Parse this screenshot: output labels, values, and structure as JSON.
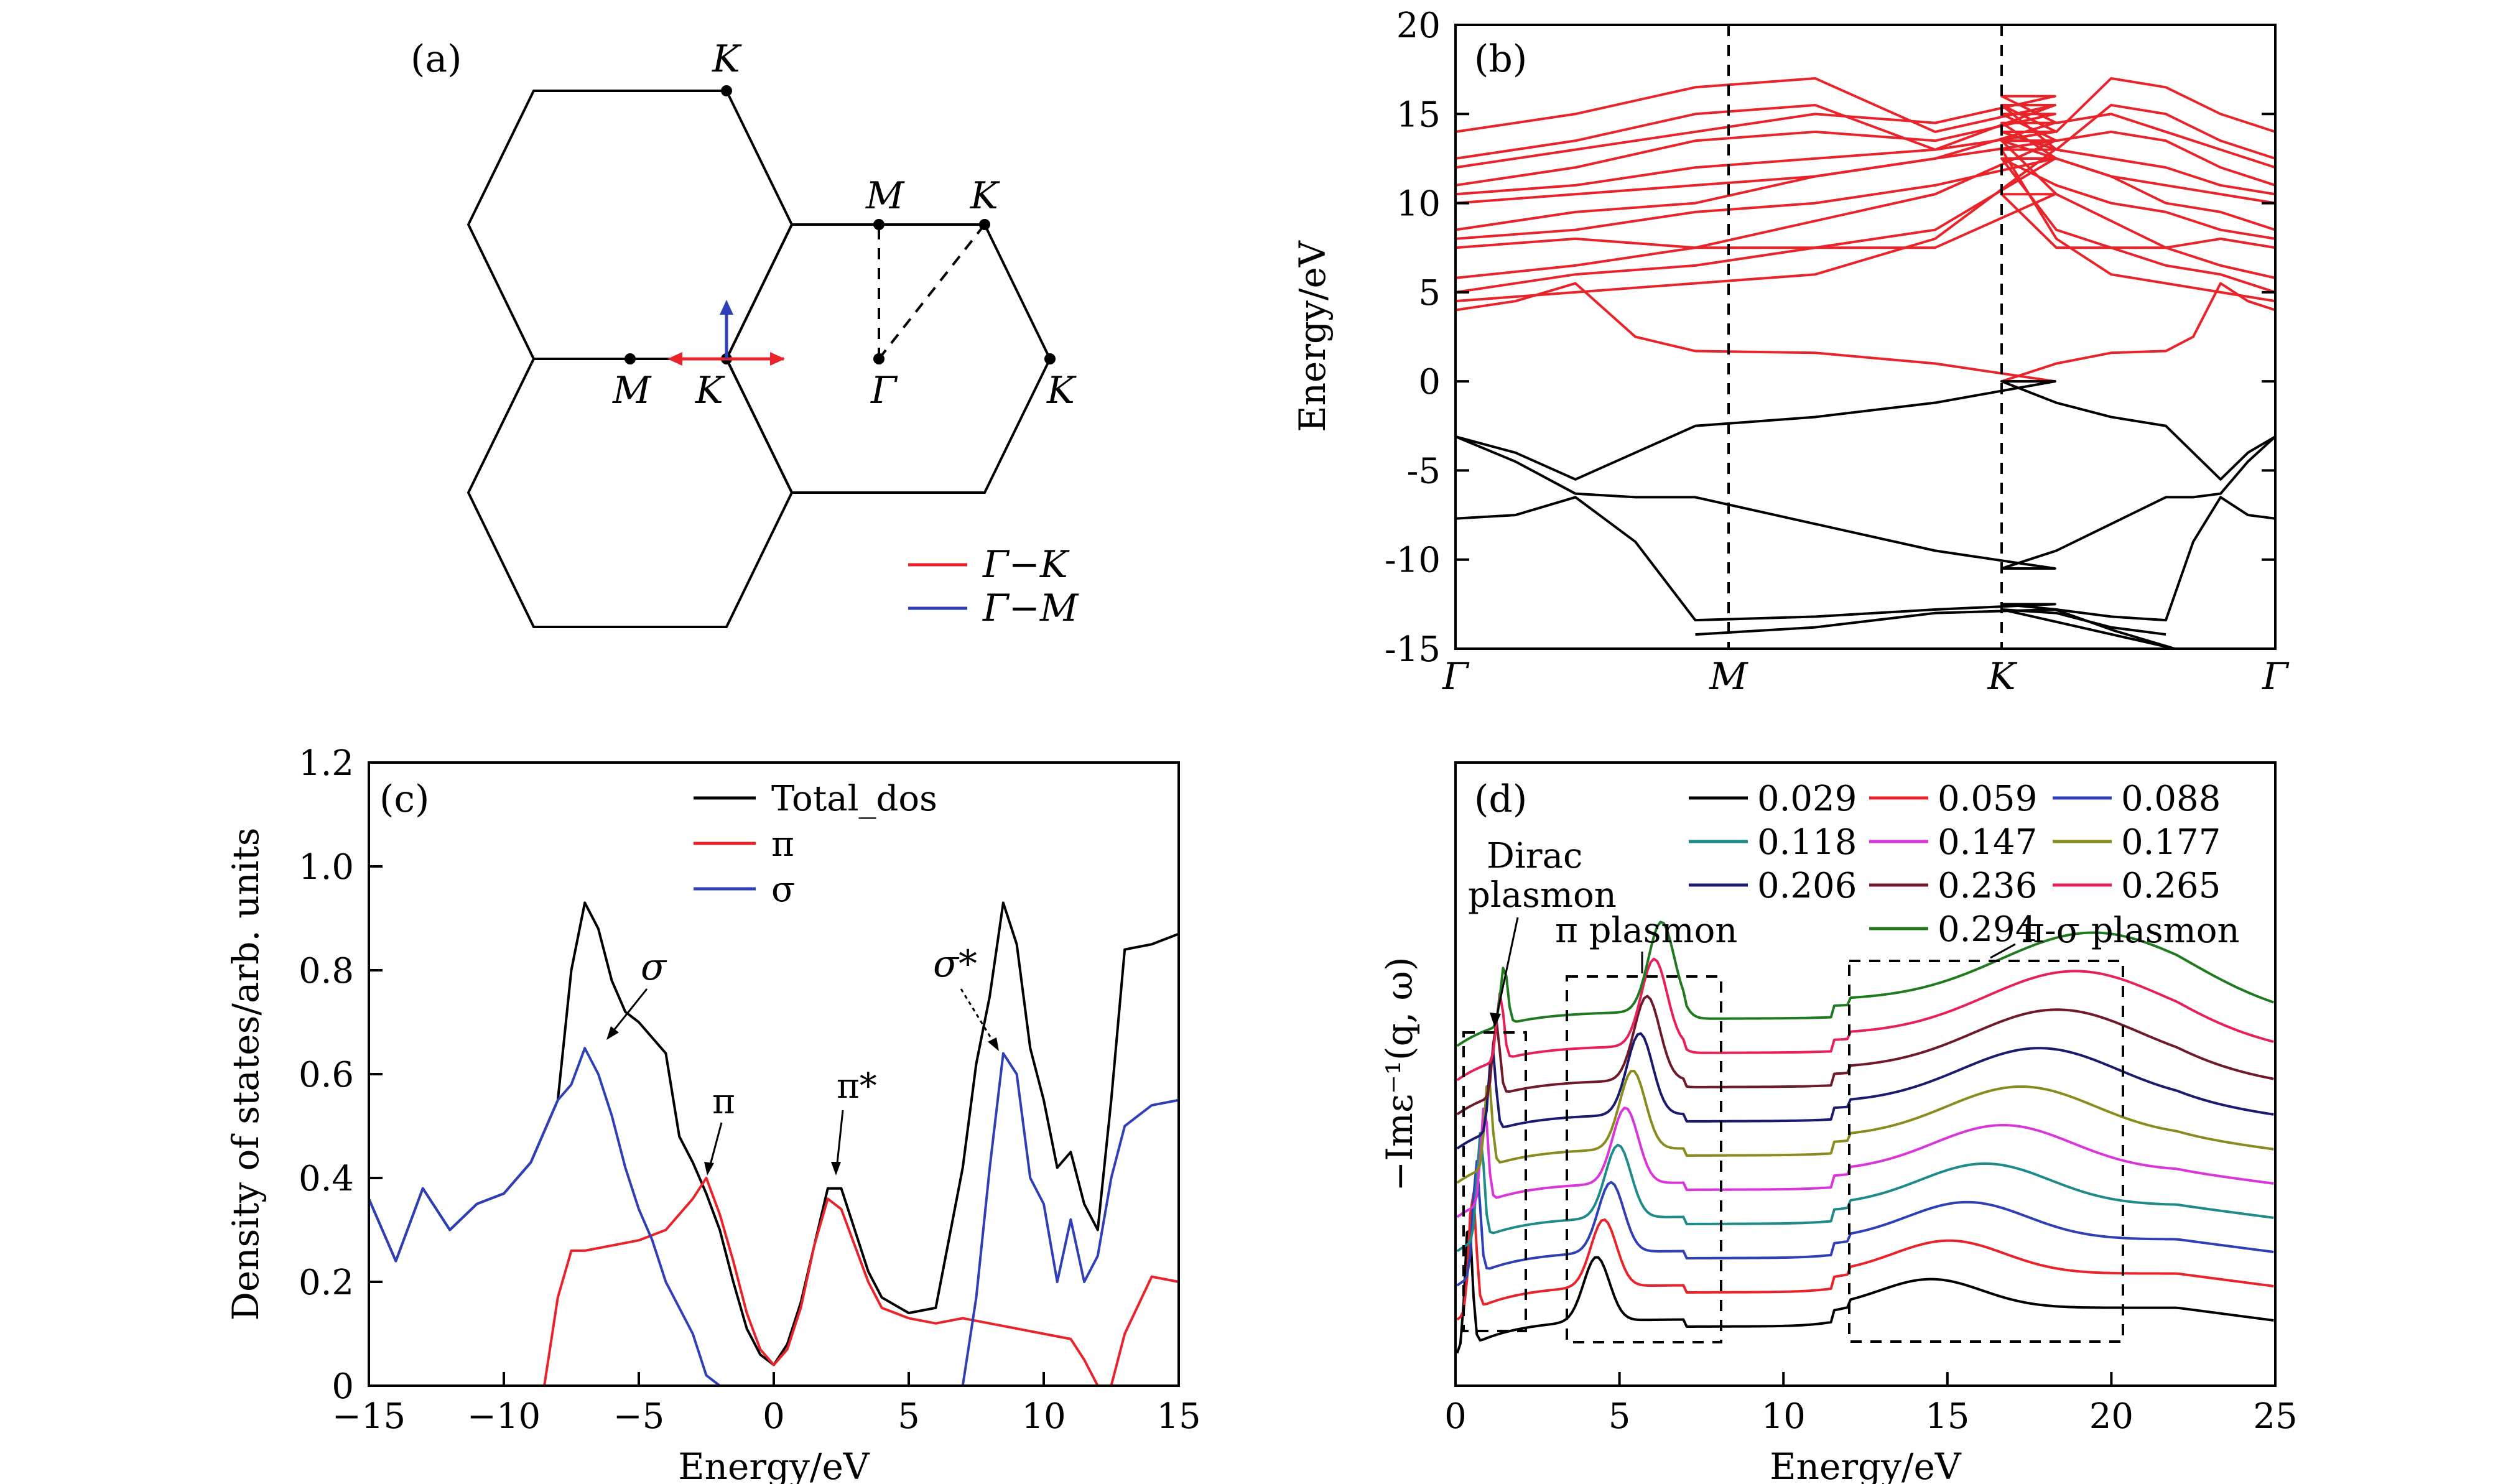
{
  "panels": {
    "a": {
      "label": "(a)",
      "points": {
        "K_top": "K",
        "M_right": "M",
        "K_right_top": "K",
        "M_left": "M",
        "K_center": "K",
        "Gamma": "Γ",
        "K_right": "K"
      },
      "legend": [
        {
          "label": "Γ−K",
          "color": "#e8232a"
        },
        {
          "label": "Γ−M",
          "color": "#2f3fb5"
        }
      ]
    },
    "b": {
      "label": "(b)",
      "ylabel": "Energy/eV",
      "kpoints": [
        "Γ",
        "M",
        "K",
        "Γ"
      ]
    },
    "c": {
      "label": "(c)",
      "xlabel": "Energy/eV",
      "ylabel": "Density of states/arb. units",
      "annotations": [
        "σ",
        "π",
        "π*",
        "σ*"
      ]
    },
    "d": {
      "label": "(d)",
      "xlabel": "Energy/eV",
      "ylabel": "−Imε⁻¹(q, ω)",
      "annotations": [
        "Dirac",
        "plasmon",
        "π plasmon",
        "π-σ plasmon"
      ]
    }
  },
  "chart_data": [
    {
      "id": "b",
      "type": "line",
      "title": "",
      "xlabel": "",
      "ylabel": "Energy/eV",
      "x_ticks": [
        "Γ",
        "M",
        "K",
        "Γ"
      ],
      "ylim": [
        -15,
        20
      ],
      "yticks": [
        -15,
        -10,
        -5,
        0,
        5,
        10,
        15,
        20
      ],
      "colors": {
        "valence": "#000000",
        "conduction": "#e8232a"
      },
      "series": [
        {
          "band": "conduction",
          "points": [
            [
              0,
              4.0
            ],
            [
              0.5,
              4.5
            ],
            [
              1,
              5.5
            ],
            [
              1.5,
              2.5
            ],
            [
              2,
              1.7
            ],
            [
              3,
              1.6
            ],
            [
              4,
              1.0
            ],
            [
              5,
              0
            ]
          ]
        },
        {
          "band": "conduction",
          "points": [
            [
              0,
              4.5
            ],
            [
              1,
              5.0
            ],
            [
              2,
              5.5
            ],
            [
              3,
              6.0
            ],
            [
              4,
              8.0
            ],
            [
              5,
              13.0
            ]
          ]
        },
        {
          "band": "conduction",
          "points": [
            [
              0,
              5.0
            ],
            [
              1,
              6.0
            ],
            [
              2,
              6.5
            ],
            [
              3,
              7.5
            ],
            [
              4,
              8.5
            ],
            [
              5,
              12.5
            ]
          ]
        },
        {
          "band": "conduction",
          "points": [
            [
              0,
              5.8
            ],
            [
              1,
              6.5
            ],
            [
              2,
              7.5
            ],
            [
              3,
              9.0
            ],
            [
              4,
              10.5
            ],
            [
              5,
              13.5
            ]
          ]
        },
        {
          "band": "conduction",
          "points": [
            [
              0,
              7.5
            ],
            [
              1,
              8.0
            ],
            [
              2,
              7.5
            ],
            [
              3,
              7.5
            ],
            [
              4,
              7.5
            ],
            [
              5,
              10.5
            ]
          ]
        },
        {
          "band": "conduction",
          "points": [
            [
              0,
              8.0
            ],
            [
              1,
              8.5
            ],
            [
              2,
              9.5
            ],
            [
              3,
              10.0
            ],
            [
              4,
              11.0
            ],
            [
              5,
              12.5
            ]
          ]
        },
        {
          "band": "conduction",
          "points": [
            [
              0,
              8.5
            ],
            [
              1,
              9.5
            ],
            [
              2,
              10.0
            ],
            [
              3,
              11.5
            ],
            [
              4,
              12.5
            ],
            [
              5,
              14.5
            ]
          ]
        },
        {
          "band": "conduction",
          "points": [
            [
              0,
              10.5
            ],
            [
              1,
              11.0
            ],
            [
              2,
              12.0
            ],
            [
              3,
              12.5
            ],
            [
              4,
              13.0
            ],
            [
              5,
              14.0
            ]
          ]
        },
        {
          "band": "conduction",
          "points": [
            [
              0,
              11.0
            ],
            [
              1,
              12.0
            ],
            [
              2,
              13.5
            ],
            [
              3,
              14.0
            ],
            [
              4,
              13.5
            ],
            [
              5,
              15.0
            ]
          ]
        },
        {
          "band": "conduction",
          "points": [
            [
              0,
              12.5
            ],
            [
              1,
              13.5
            ],
            [
              2,
              15.0
            ],
            [
              3,
              15.5
            ],
            [
              4,
              13.0
            ],
            [
              5,
              15.5
            ]
          ]
        },
        {
          "band": "conduction",
          "points": [
            [
              0,
              14.0
            ],
            [
              1,
              15.0
            ],
            [
              2,
              16.5
            ],
            [
              3,
              17.0
            ],
            [
              4,
              14.0
            ],
            [
              5,
              15.5
            ]
          ]
        },
        {
          "band": "conduction",
          "points": [
            [
              0,
              12.0
            ],
            [
              1,
              13.0
            ],
            [
              2,
              14.0
            ],
            [
              3,
              15.0
            ],
            [
              4,
              14.5
            ],
            [
              5,
              16.0
            ]
          ]
        },
        {
          "band": "conduction",
          "points": [
            [
              0,
              10.0
            ],
            [
              1,
              10.5
            ],
            [
              2,
              11.0
            ],
            [
              3,
              11.5
            ],
            [
              4,
              12.5
            ],
            [
              5,
              13.5
            ]
          ]
        },
        {
          "band": "valence",
          "points": [
            [
              0,
              -3.1
            ],
            [
              0.5,
              -4.0
            ],
            [
              1,
              -5.5
            ],
            [
              1.5,
              -4.0
            ],
            [
              2,
              -2.5
            ],
            [
              3,
              -2.0
            ],
            [
              4,
              -1.2
            ],
            [
              5,
              0
            ]
          ]
        },
        {
          "band": "valence",
          "points": [
            [
              0,
              -3.1
            ],
            [
              0.5,
              -4.5
            ],
            [
              1,
              -6.3
            ],
            [
              1.5,
              -6.5
            ],
            [
              2,
              -6.5
            ],
            [
              3,
              -8.0
            ],
            [
              4,
              -9.5
            ],
            [
              5,
              -10.5
            ]
          ]
        },
        {
          "band": "valence",
          "points": [
            [
              0,
              -7.7
            ],
            [
              0.5,
              -7.5
            ],
            [
              1,
              -6.5
            ],
            [
              1.5,
              -9.0
            ],
            [
              2,
              -13.4
            ],
            [
              3,
              -13.2
            ],
            [
              4,
              -12.8
            ],
            [
              5,
              -12.5
            ]
          ]
        },
        {
          "band": "valence",
          "points": [
            [
              2,
              -14.2
            ],
            [
              3,
              -13.8
            ],
            [
              4,
              -13.0
            ],
            [
              5,
              -12.8
            ],
            [
              5.5,
              -14.0
            ],
            [
              6,
              -15.0
            ]
          ]
        }
      ]
    },
    {
      "id": "c",
      "type": "line",
      "title": "",
      "xlabel": "Energy/eV",
      "ylabel": "Density of states/arb. units",
      "xlim": [
        -15,
        15
      ],
      "ylim": [
        0,
        1.2
      ],
      "xticks": [
        -15,
        -10,
        -5,
        0,
        5,
        10,
        15
      ],
      "yticks": [
        0,
        0.2,
        0.4,
        0.6,
        0.8,
        1.0,
        1.2
      ],
      "legend_position": "top-center",
      "series": [
        {
          "name": "Total_dos",
          "color": "#000000",
          "x": [
            -15,
            -14,
            -13,
            -12,
            -11,
            -10,
            -9,
            -8,
            -7.5,
            -7,
            -6.5,
            -6,
            -5.5,
            -5,
            -4.5,
            -4,
            -3.5,
            -3,
            -2.5,
            -2,
            -1.5,
            -1,
            -0.5,
            0,
            0.5,
            1,
            1.5,
            2,
            2.5,
            3,
            3.5,
            4,
            5,
            6,
            7,
            7.5,
            8,
            8.5,
            9,
            9.5,
            10,
            10.5,
            11,
            11.5,
            12,
            12.5,
            13,
            14,
            15
          ],
          "y": [
            0.36,
            0.24,
            0.38,
            0.3,
            0.35,
            0.37,
            0.43,
            0.55,
            0.8,
            0.93,
            0.88,
            0.78,
            0.72,
            0.7,
            0.67,
            0.64,
            0.48,
            0.43,
            0.37,
            0.3,
            0.2,
            0.11,
            0.06,
            0.04,
            0.08,
            0.16,
            0.27,
            0.38,
            0.38,
            0.3,
            0.22,
            0.17,
            0.14,
            0.15,
            0.42,
            0.62,
            0.75,
            0.93,
            0.85,
            0.65,
            0.55,
            0.42,
            0.45,
            0.35,
            0.3,
            0.55,
            0.84,
            0.85,
            0.87
          ]
        },
        {
          "name": "π",
          "color": "#e8232a",
          "x": [
            -15,
            -9,
            -8.5,
            -8,
            -7.5,
            -7,
            -6,
            -5,
            -4,
            -3.5,
            -3,
            -2.5,
            -2,
            -1.5,
            -1,
            -0.5,
            0,
            0.5,
            1,
            1.5,
            2,
            2.5,
            3,
            3.5,
            4,
            5,
            6,
            7,
            8,
            9,
            10,
            11,
            11.5,
            12,
            12.5,
            13,
            14,
            15
          ],
          "y": [
            0,
            0,
            0,
            0.17,
            0.26,
            0.26,
            0.27,
            0.28,
            0.3,
            0.33,
            0.36,
            0.4,
            0.33,
            0.24,
            0.14,
            0.07,
            0.04,
            0.07,
            0.15,
            0.27,
            0.36,
            0.34,
            0.27,
            0.2,
            0.15,
            0.13,
            0.12,
            0.13,
            0.12,
            0.11,
            0.1,
            0.09,
            0.05,
            0,
            0,
            0.1,
            0.21,
            0.2
          ]
        },
        {
          "name": "σ",
          "color": "#2f3fb5",
          "x": [
            -15,
            -14,
            -13,
            -12,
            -11,
            -10,
            -9,
            -8,
            -7.5,
            -7,
            -6.5,
            -6,
            -5.5,
            -5,
            -4.5,
            -4,
            -3,
            -2.5,
            -2,
            7,
            7.5,
            8,
            8.5,
            9,
            9.5,
            10,
            10.5,
            11,
            11.5,
            12,
            12.5,
            13,
            14,
            15
          ],
          "y": [
            0.36,
            0.24,
            0.38,
            0.3,
            0.35,
            0.37,
            0.43,
            0.55,
            0.58,
            0.65,
            0.6,
            0.52,
            0.42,
            0.34,
            0.28,
            0.2,
            0.1,
            0.02,
            0,
            0,
            0.17,
            0.42,
            0.64,
            0.6,
            0.4,
            0.35,
            0.2,
            0.32,
            0.2,
            0.25,
            0.4,
            0.5,
            0.54,
            0.55
          ]
        }
      ]
    },
    {
      "id": "d",
      "type": "line",
      "title": "",
      "xlabel": "Energy/eV",
      "ylabel": "−Imε⁻¹(q, ω)",
      "xlim": [
        0,
        25
      ],
      "xticks": [
        0,
        5,
        10,
        15,
        20,
        25
      ],
      "legend_position": "top-right",
      "series": [
        {
          "name": "0.029",
          "color": "#000000",
          "offset": 0
        },
        {
          "name": "0.059",
          "color": "#e8232a",
          "offset": 1
        },
        {
          "name": "0.088",
          "color": "#2f3fb5",
          "offset": 2
        },
        {
          "name": "0.118",
          "color": "#1f8a8a",
          "offset": 3
        },
        {
          "name": "0.147",
          "color": "#d936d9",
          "offset": 4
        },
        {
          "name": "0.177",
          "color": "#8a8a1f",
          "offset": 5
        },
        {
          "name": "0.206",
          "color": "#1a1a6e",
          "offset": 6
        },
        {
          "name": "0.236",
          "color": "#6e1a2a",
          "offset": 7
        },
        {
          "name": "0.265",
          "color": "#e8205a",
          "offset": 8
        },
        {
          "name": "0.294",
          "color": "#1f7a1f",
          "offset": 9
        }
      ]
    }
  ]
}
